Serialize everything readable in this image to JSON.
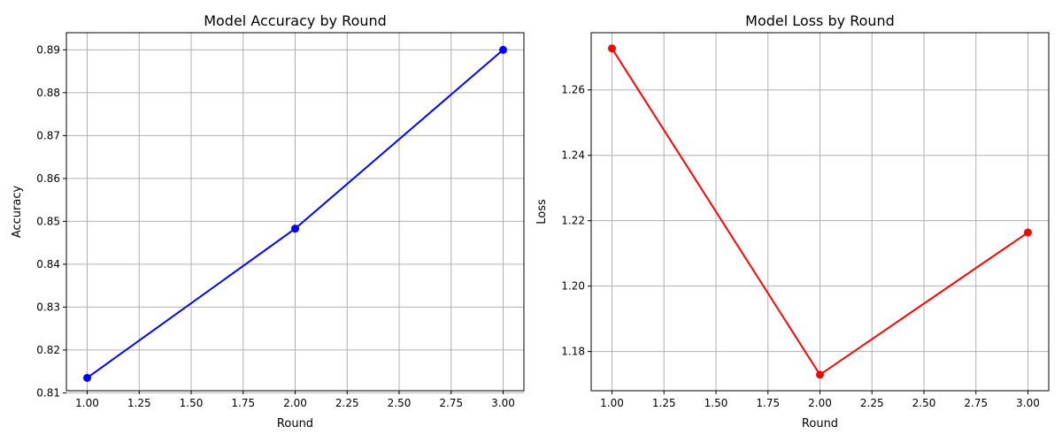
{
  "chart_data": [
    {
      "type": "line",
      "title": "Model Accuracy by Round",
      "xlabel": "Round",
      "ylabel": "Accuracy",
      "xlim": [
        0.9,
        3.1
      ],
      "ylim": [
        0.8105,
        0.894
      ],
      "xticks": [
        1.0,
        1.25,
        1.5,
        1.75,
        2.0,
        2.25,
        2.5,
        2.75,
        3.0
      ],
      "xtick_labels": [
        "1.00",
        "1.25",
        "1.50",
        "1.75",
        "2.00",
        "2.25",
        "2.50",
        "2.75",
        "3.00"
      ],
      "yticks": [
        0.81,
        0.82,
        0.83,
        0.84,
        0.85,
        0.86,
        0.87,
        0.88,
        0.89
      ],
      "ytick_labels": [
        "0.81",
        "0.82",
        "0.83",
        "0.84",
        "0.85",
        "0.86",
        "0.87",
        "0.88",
        "0.89"
      ],
      "grid": true,
      "series": [
        {
          "color": "#0000ff",
          "marker": "circle",
          "x": [
            1,
            2,
            3
          ],
          "y": [
            0.8135,
            0.8483,
            0.89
          ]
        }
      ]
    },
    {
      "type": "line",
      "title": "Model Loss by Round",
      "xlabel": "Round",
      "ylabel": "Loss",
      "xlim": [
        0.9,
        3.1
      ],
      "ylim": [
        1.168,
        1.2775
      ],
      "xticks": [
        1.0,
        1.25,
        1.5,
        1.75,
        2.0,
        2.25,
        2.5,
        2.75,
        3.0
      ],
      "xtick_labels": [
        "1.00",
        "1.25",
        "1.50",
        "1.75",
        "2.00",
        "2.25",
        "2.50",
        "2.75",
        "3.00"
      ],
      "yticks": [
        1.18,
        1.2,
        1.22,
        1.24,
        1.26
      ],
      "ytick_labels": [
        "1.18",
        "1.20",
        "1.22",
        "1.24",
        "1.26"
      ],
      "grid": true,
      "series": [
        {
          "color": "#ff0000",
          "marker": "circle",
          "x": [
            1,
            2,
            3
          ],
          "y": [
            1.2727,
            1.1729,
            1.2164
          ]
        }
      ]
    }
  ]
}
